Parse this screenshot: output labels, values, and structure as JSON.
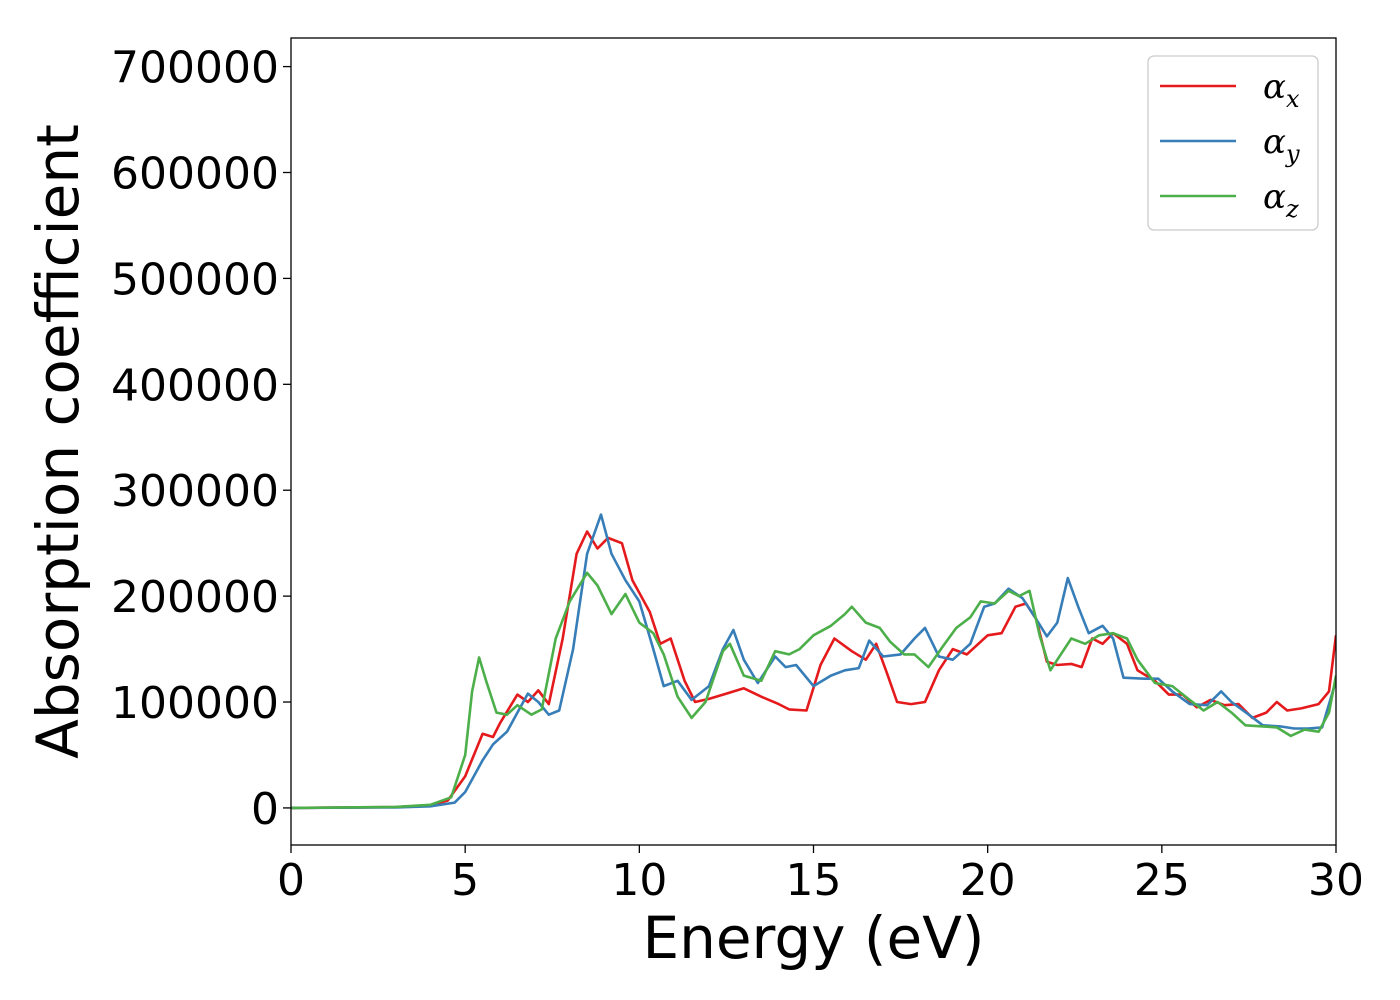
{
  "chart_data": {
    "type": "line",
    "title": "",
    "xlabel": "Energy (eV)",
    "ylabel": "Absorption coefficient",
    "xlim": [
      0,
      30
    ],
    "ylim": [
      -35000,
      727000
    ],
    "x_ticks": [
      "0",
      "5",
      "10",
      "15",
      "20",
      "25",
      "30"
    ],
    "y_ticks": [
      "0",
      "100000",
      "200000",
      "300000",
      "400000",
      "500000",
      "600000",
      "700000"
    ],
    "grid": false,
    "legend_position": "top-right",
    "series": [
      {
        "name": "α",
        "subscript": "x",
        "color": "#e41a1c",
        "points": [
          [
            0,
            0
          ],
          [
            3,
            800
          ],
          [
            4,
            2500
          ],
          [
            4.5,
            7000
          ],
          [
            5,
            30000
          ],
          [
            5.5,
            70000
          ],
          [
            5.8,
            67000
          ],
          [
            6,
            80000
          ],
          [
            6.5,
            107000
          ],
          [
            6.8,
            100000
          ],
          [
            7.1,
            111000
          ],
          [
            7.4,
            98000
          ],
          [
            7.8,
            160000
          ],
          [
            8.2,
            240000
          ],
          [
            8.5,
            261000
          ],
          [
            8.8,
            245000
          ],
          [
            9.1,
            255000
          ],
          [
            9.5,
            250000
          ],
          [
            9.8,
            215000
          ],
          [
            10.3,
            185000
          ],
          [
            10.6,
            155000
          ],
          [
            10.9,
            160000
          ],
          [
            11.3,
            120000
          ],
          [
            11.6,
            100000
          ],
          [
            12,
            103000
          ],
          [
            12.5,
            108000
          ],
          [
            13,
            113000
          ],
          [
            13.5,
            105000
          ],
          [
            14,
            98000
          ],
          [
            14.3,
            93000
          ],
          [
            14.8,
            92000
          ],
          [
            15.2,
            135000
          ],
          [
            15.6,
            160000
          ],
          [
            16.1,
            148000
          ],
          [
            16.5,
            140000
          ],
          [
            16.8,
            155000
          ],
          [
            17.1,
            128000
          ],
          [
            17.4,
            100000
          ],
          [
            17.8,
            98000
          ],
          [
            18.2,
            100000
          ],
          [
            18.6,
            130000
          ],
          [
            19,
            150000
          ],
          [
            19.4,
            145000
          ],
          [
            20,
            163000
          ],
          [
            20.4,
            165000
          ],
          [
            20.8,
            190000
          ],
          [
            21.1,
            193000
          ],
          [
            21.4,
            178000
          ],
          [
            21.7,
            138000
          ],
          [
            22,
            135000
          ],
          [
            22.4,
            136000
          ],
          [
            22.7,
            133000
          ],
          [
            23,
            160000
          ],
          [
            23.3,
            155000
          ],
          [
            23.6,
            165000
          ],
          [
            24,
            155000
          ],
          [
            24.3,
            130000
          ],
          [
            24.8,
            120000
          ],
          [
            25.2,
            107000
          ],
          [
            25.6,
            107000
          ],
          [
            26,
            95000
          ],
          [
            26.4,
            102000
          ],
          [
            26.8,
            97000
          ],
          [
            27.2,
            98000
          ],
          [
            27.6,
            85000
          ],
          [
            28,
            90000
          ],
          [
            28.3,
            100000
          ],
          [
            28.6,
            92000
          ],
          [
            29,
            94000
          ],
          [
            29.5,
            98000
          ],
          [
            29.8,
            110000
          ],
          [
            30,
            163000
          ]
        ]
      },
      {
        "name": "α",
        "subscript": "y",
        "color": "#377eb8",
        "points": [
          [
            0,
            0
          ],
          [
            3,
            500
          ],
          [
            4,
            1500
          ],
          [
            4.7,
            5000
          ],
          [
            5,
            15000
          ],
          [
            5.5,
            45000
          ],
          [
            5.8,
            60000
          ],
          [
            6.2,
            72000
          ],
          [
            6.5,
            90000
          ],
          [
            6.8,
            108000
          ],
          [
            7.1,
            100000
          ],
          [
            7.4,
            88000
          ],
          [
            7.7,
            92000
          ],
          [
            8.1,
            150000
          ],
          [
            8.5,
            240000
          ],
          [
            8.9,
            277000
          ],
          [
            9.2,
            240000
          ],
          [
            9.6,
            215000
          ],
          [
            10,
            195000
          ],
          [
            10.4,
            150000
          ],
          [
            10.7,
            115000
          ],
          [
            11.1,
            120000
          ],
          [
            11.5,
            102000
          ],
          [
            12,
            115000
          ],
          [
            12.4,
            150000
          ],
          [
            12.7,
            168000
          ],
          [
            13,
            140000
          ],
          [
            13.4,
            118000
          ],
          [
            13.9,
            143000
          ],
          [
            14.2,
            133000
          ],
          [
            14.5,
            135000
          ],
          [
            15,
            115000
          ],
          [
            15.5,
            125000
          ],
          [
            15.9,
            130000
          ],
          [
            16.3,
            132000
          ],
          [
            16.6,
            158000
          ],
          [
            17,
            143000
          ],
          [
            17.5,
            145000
          ],
          [
            17.9,
            160000
          ],
          [
            18.2,
            170000
          ],
          [
            18.6,
            143000
          ],
          [
            19,
            140000
          ],
          [
            19.5,
            155000
          ],
          [
            19.9,
            190000
          ],
          [
            20.2,
            193000
          ],
          [
            20.6,
            207000
          ],
          [
            21,
            198000
          ],
          [
            21.4,
            178000
          ],
          [
            21.7,
            162000
          ],
          [
            22,
            175000
          ],
          [
            22.3,
            217000
          ],
          [
            22.6,
            190000
          ],
          [
            22.9,
            165000
          ],
          [
            23.3,
            172000
          ],
          [
            23.6,
            160000
          ],
          [
            23.9,
            123000
          ],
          [
            24.5,
            122000
          ],
          [
            24.9,
            122000
          ],
          [
            25.3,
            110000
          ],
          [
            25.8,
            98000
          ],
          [
            26.3,
            97000
          ],
          [
            26.7,
            110000
          ],
          [
            27,
            100000
          ],
          [
            27.5,
            88000
          ],
          [
            27.9,
            78000
          ],
          [
            28.4,
            77000
          ],
          [
            28.8,
            75000
          ],
          [
            29.2,
            75000
          ],
          [
            29.6,
            76000
          ],
          [
            30,
            120000
          ]
        ]
      },
      {
        "name": "α",
        "subscript": "z",
        "color": "#4daf4a",
        "points": [
          [
            0,
            0
          ],
          [
            3,
            1000
          ],
          [
            4,
            3000
          ],
          [
            4.6,
            10000
          ],
          [
            5,
            50000
          ],
          [
            5.2,
            110000
          ],
          [
            5.4,
            142000
          ],
          [
            5.6,
            120000
          ],
          [
            5.9,
            90000
          ],
          [
            6.2,
            88000
          ],
          [
            6.5,
            97000
          ],
          [
            6.9,
            88000
          ],
          [
            7.2,
            93000
          ],
          [
            7.6,
            160000
          ],
          [
            8,
            195000
          ],
          [
            8.5,
            222000
          ],
          [
            8.8,
            210000
          ],
          [
            9.2,
            183000
          ],
          [
            9.6,
            202000
          ],
          [
            10,
            175000
          ],
          [
            10.4,
            165000
          ],
          [
            10.7,
            145000
          ],
          [
            11.1,
            105000
          ],
          [
            11.5,
            85000
          ],
          [
            11.9,
            100000
          ],
          [
            12.4,
            148000
          ],
          [
            12.6,
            155000
          ],
          [
            13,
            125000
          ],
          [
            13.5,
            120000
          ],
          [
            13.9,
            148000
          ],
          [
            14.3,
            145000
          ],
          [
            14.6,
            150000
          ],
          [
            15,
            163000
          ],
          [
            15.5,
            172000
          ],
          [
            15.9,
            183000
          ],
          [
            16.1,
            190000
          ],
          [
            16.5,
            175000
          ],
          [
            16.9,
            170000
          ],
          [
            17.2,
            157000
          ],
          [
            17.6,
            145000
          ],
          [
            17.9,
            145000
          ],
          [
            18.3,
            133000
          ],
          [
            18.7,
            152000
          ],
          [
            19.1,
            170000
          ],
          [
            19.5,
            180000
          ],
          [
            19.8,
            195000
          ],
          [
            20.2,
            193000
          ],
          [
            20.6,
            205000
          ],
          [
            20.9,
            200000
          ],
          [
            21.2,
            205000
          ],
          [
            21.5,
            162000
          ],
          [
            21.8,
            130000
          ],
          [
            22.1,
            145000
          ],
          [
            22.4,
            160000
          ],
          [
            22.8,
            155000
          ],
          [
            23.2,
            163000
          ],
          [
            23.6,
            165000
          ],
          [
            24,
            160000
          ],
          [
            24.3,
            140000
          ],
          [
            24.8,
            118000
          ],
          [
            25.3,
            115000
          ],
          [
            25.8,
            102000
          ],
          [
            26.2,
            92000
          ],
          [
            26.6,
            100000
          ],
          [
            27,
            90000
          ],
          [
            27.4,
            78000
          ],
          [
            27.9,
            77000
          ],
          [
            28.3,
            76000
          ],
          [
            28.7,
            68000
          ],
          [
            29.1,
            74000
          ],
          [
            29.5,
            72000
          ],
          [
            29.8,
            90000
          ],
          [
            30,
            125000
          ]
        ]
      }
    ]
  }
}
